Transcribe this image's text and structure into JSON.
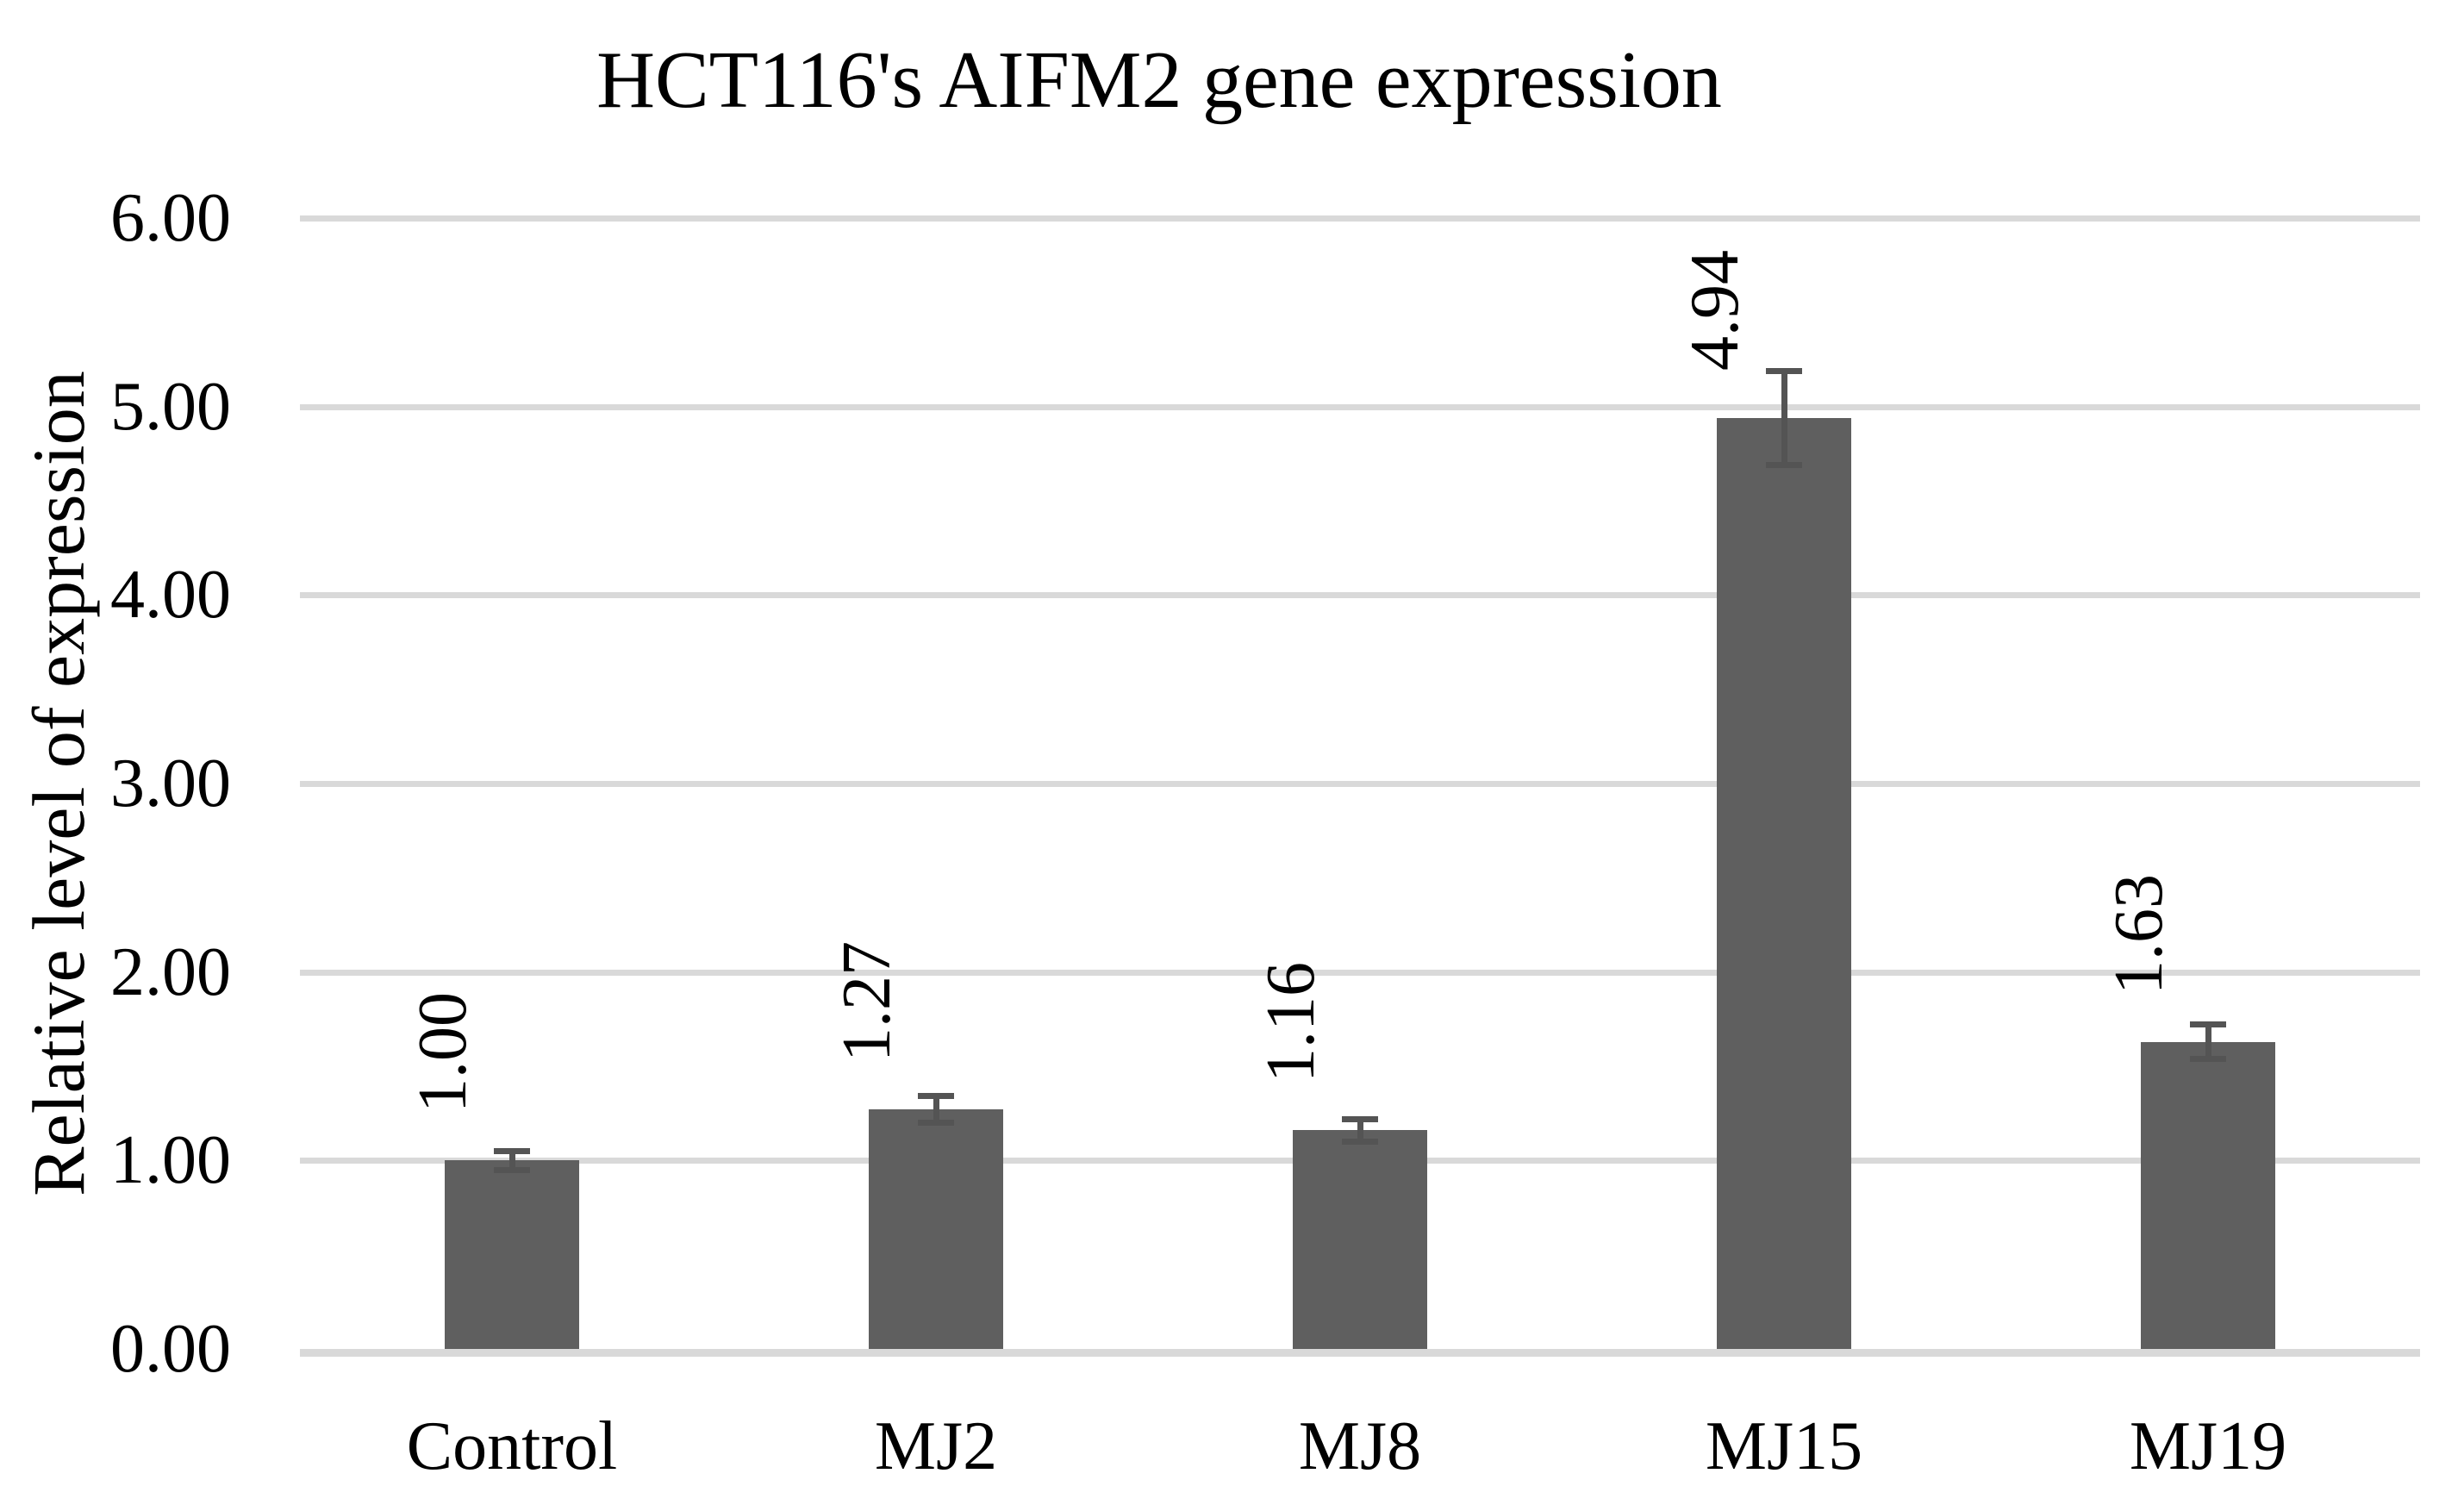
{
  "chart_data": {
    "type": "bar",
    "title": "HCT116's AIFM2 gene expression",
    "ylabel": "Relative level of expression",
    "xlabel": "",
    "categories": [
      "Control",
      "MJ2",
      "MJ8",
      "MJ15",
      "MJ19"
    ],
    "values": [
      1.0,
      1.27,
      1.16,
      4.94,
      1.63
    ],
    "data_labels": [
      "1.00",
      "1.27",
      "1.16",
      "4.94",
      "1.63"
    ],
    "error_bars": [
      0.05,
      0.07,
      0.06,
      0.25,
      0.09
    ],
    "ylim": [
      0,
      6
    ],
    "yticks": [
      0,
      1,
      2,
      3,
      4,
      5,
      6
    ],
    "ytick_labels": [
      "0.00",
      "1.00",
      "2.00",
      "3.00",
      "4.00",
      "5.00",
      "6.00"
    ],
    "grid": "horizontal",
    "legend": "none",
    "data_label_rotation": "rotated-up-90",
    "colors": {
      "bar": "#5F5F5F",
      "error_bar": "#545454",
      "gridline": "#D9D9D9",
      "axis_line": "#D9D9D9",
      "text": "#000000",
      "background": "#FFFFFF"
    }
  }
}
